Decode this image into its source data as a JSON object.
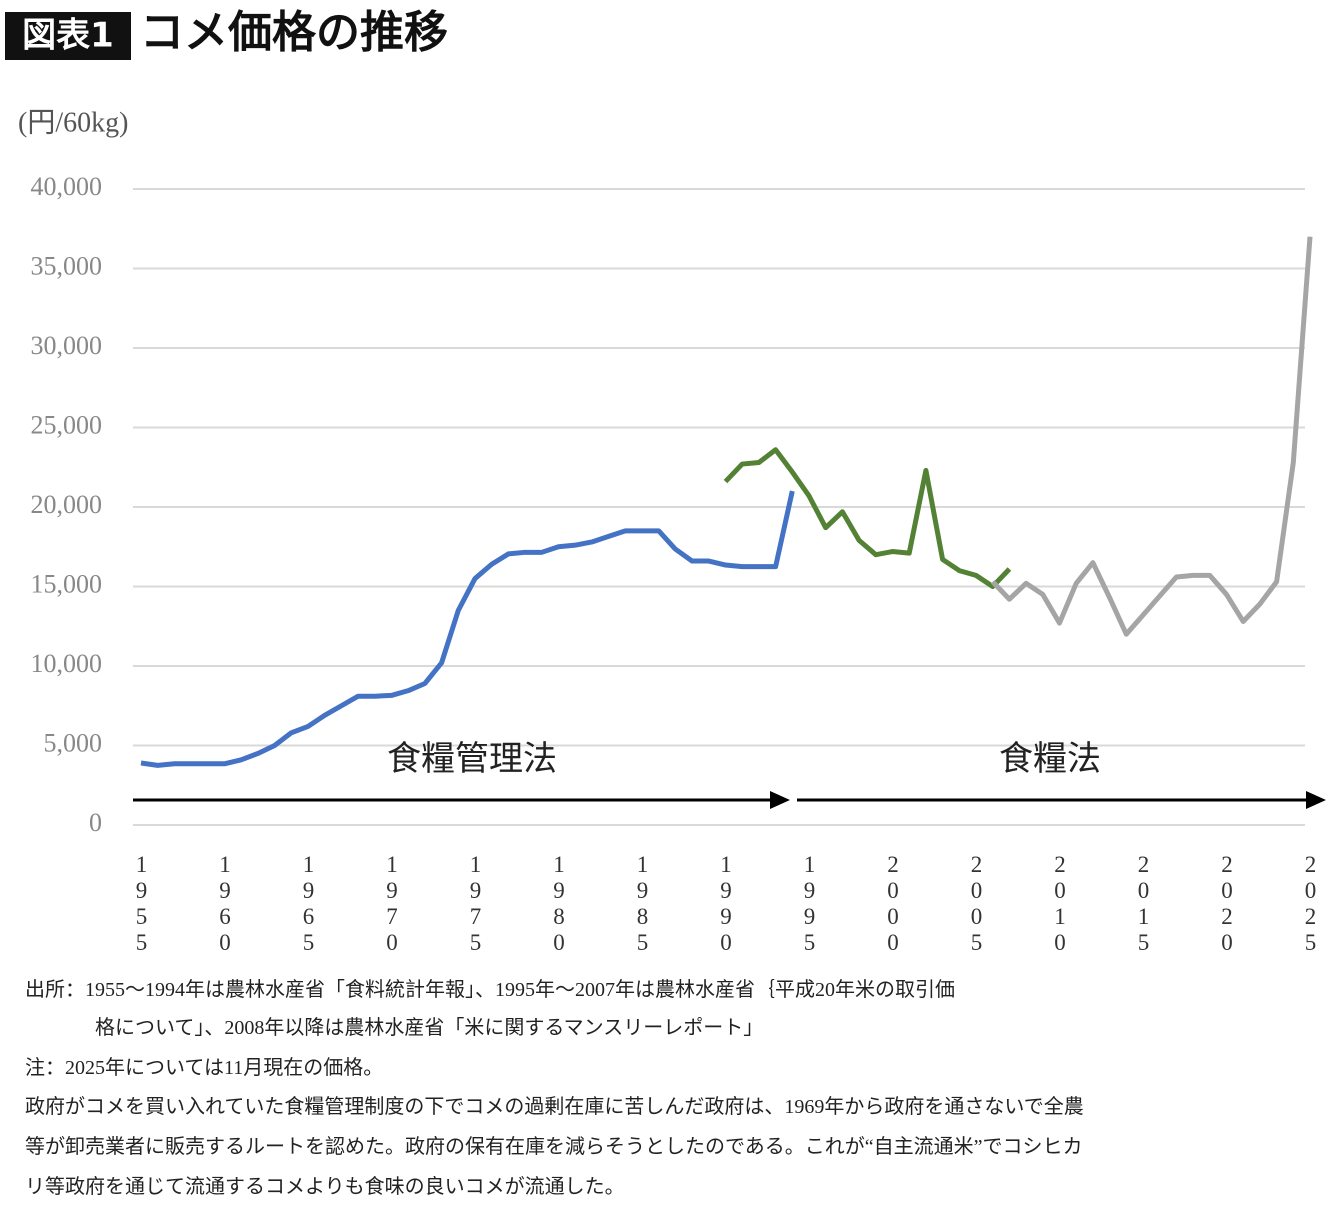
{
  "chart_data": {
    "type": "line",
    "title_tag": "図表1",
    "title": "コメ価格の推移",
    "y_axis_label": "(円/60kg)",
    "xlim": [
      1955,
      2025
    ],
    "xticks": [
      1955,
      1960,
      1965,
      1970,
      1975,
      1980,
      1985,
      1990,
      1995,
      2000,
      2005,
      2010,
      2015,
      2020,
      2025
    ],
    "ylim": [
      0,
      40000
    ],
    "yticks": [
      0,
      {
        "value": 5000,
        "label": "5,000"
      },
      {
        "value": 10000,
        "label": "10,000"
      },
      {
        "value": 15000,
        "label": "15,000"
      },
      {
        "value": 20000,
        "label": "20,000"
      },
      {
        "value": 25000,
        "label": "25,000"
      },
      {
        "value": 30000,
        "label": "30,000"
      },
      {
        "value": 35000,
        "label": "35,000"
      },
      {
        "value": 40000,
        "label": "40,000"
      }
    ],
    "grid": true,
    "series": [
      {
        "color": "#4472c4",
        "x": [
          1955,
          1956,
          1957,
          1958,
          1959,
          1960,
          1961,
          1962,
          1963,
          1964,
          1965,
          1966,
          1967,
          1968,
          1969,
          1970,
          1971,
          1972,
          1973,
          1974,
          1975,
          1976,
          1977,
          1978,
          1979,
          1980,
          1981,
          1982,
          1983,
          1984,
          1985,
          1986,
          1987,
          1988,
          1989,
          1990,
          1991,
          1992,
          1993,
          1994
        ],
        "values": [
          3900,
          3750,
          3850,
          3850,
          3850,
          3850,
          4100,
          4500,
          5000,
          5800,
          6200,
          6900,
          7500,
          8100,
          8100,
          8150,
          8450,
          8900,
          10200,
          13500,
          15500,
          16400,
          17050,
          17150,
          17150,
          17500,
          17600,
          17800,
          18150,
          18500,
          18500,
          18500,
          17350,
          16600,
          16600,
          16350,
          16250,
          16250,
          16250,
          21000
        ]
      },
      {
        "color": "#548235",
        "x": [
          1990,
          1991,
          1992,
          1993,
          1994,
          1995,
          1996,
          1997,
          1998,
          1999,
          2000,
          2001,
          2002,
          2003,
          2004,
          2005,
          2006,
          2007
        ],
        "values": [
          21600,
          22700,
          22800,
          23600,
          22200,
          20700,
          18700,
          19700,
          17900,
          17000,
          17200,
          17100,
          22300,
          16700,
          16000,
          15700,
          15000,
          16100
        ]
      },
      {
        "color": "#a5a5a5",
        "x": [
          2006,
          2007,
          2008,
          2009,
          2010,
          2011,
          2012,
          2013,
          2014,
          2015,
          2016,
          2017,
          2018,
          2019,
          2020,
          2021,
          2022,
          2023,
          2024,
          2025
        ],
        "values": [
          15300,
          14200,
          15200,
          14500,
          12700,
          15200,
          16500,
          14300,
          12000,
          13200,
          14400,
          15600,
          15700,
          15700,
          14500,
          12800,
          13900,
          15300,
          22800,
          37000
        ]
      }
    ],
    "annotations": [
      "食糧管理法",
      "食糧法"
    ],
    "notes": [
      "出所：1955～1994年は農林水産省「食料統計年報」、1995年～2007年は農林水産省｛平成20年米の取引価",
      "格について」、2008年以降は農林水産省「米に関するマンスリーレポート」",
      "注：2025年については11月現在の価格。",
      "政府がコメを買い入れていた食糧管理制度の下でコメの過剰在庫に苦しんだ政府は、1969年から政府を通さないで全農",
      "等が卸売業者に販売するルートを認めた。政府の保有在庫を減らそうとしたのである。これが“自主流通米”でコシヒカ",
      "リ等政府を通じて流通するコメよりも食味の良いコメが流通した。"
    ]
  }
}
